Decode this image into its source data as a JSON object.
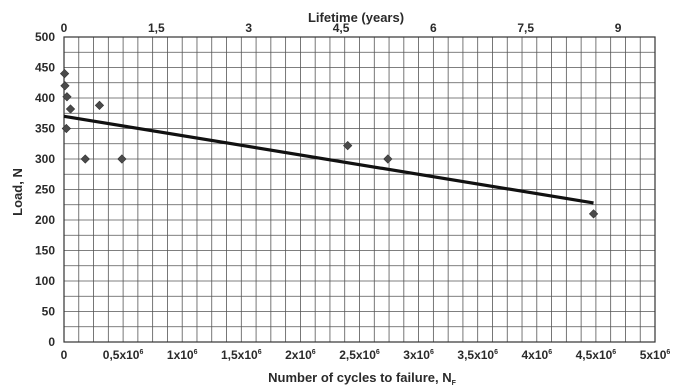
{
  "chart_data": {
    "type": "scatter",
    "title": "",
    "top_axis": {
      "label": "Lifetime  (years)",
      "ticks": [
        "0",
        "1,5",
        "3",
        "4,5",
        "6",
        "7,5",
        "9"
      ],
      "range": [
        0,
        9.6
      ]
    },
    "x_axis": {
      "label_main": "Number of cycles to failure, N",
      "label_sub": "F",
      "range": [
        0,
        5000000
      ],
      "ticks": [
        {
          "value": 0,
          "label": "0"
        },
        {
          "value": 500000,
          "mant": "0,5x10",
          "exp": "6"
        },
        {
          "value": 1000000,
          "mant": "1x10",
          "exp": "6"
        },
        {
          "value": 1500000,
          "mant": "1,5x10",
          "exp": "6"
        },
        {
          "value": 2000000,
          "mant": "2x10",
          "exp": "6"
        },
        {
          "value": 2500000,
          "mant": "2,5x10",
          "exp": "6"
        },
        {
          "value": 3000000,
          "mant": "3x10",
          "exp": "6"
        },
        {
          "value": 3500000,
          "mant": "3,5x10",
          "exp": "6"
        },
        {
          "value": 4000000,
          "mant": "4x10",
          "exp": "6"
        },
        {
          "value": 4500000,
          "mant": "4,5x10",
          "exp": "6"
        },
        {
          "value": 5000000,
          "mant": "5x10",
          "exp": "6"
        }
      ]
    },
    "y_axis": {
      "label": "Load, N",
      "range": [
        0,
        500
      ],
      "ticks": [
        0,
        50,
        100,
        150,
        200,
        250,
        300,
        350,
        400,
        450,
        500
      ]
    },
    "grid": true,
    "points": [
      {
        "x": 5000,
        "y": 440
      },
      {
        "x": 8000,
        "y": 420
      },
      {
        "x": 25000,
        "y": 402
      },
      {
        "x": 55000,
        "y": 382
      },
      {
        "x": 20000,
        "y": 350
      },
      {
        "x": 180000,
        "y": 300
      },
      {
        "x": 300000,
        "y": 388
      },
      {
        "x": 490000,
        "y": 300
      },
      {
        "x": 2400000,
        "y": 322
      },
      {
        "x": 2740000,
        "y": 300
      },
      {
        "x": 4480000,
        "y": 210
      }
    ],
    "trend_line": {
      "from": {
        "x": 0,
        "y": 370
      },
      "to": {
        "x": 4480000,
        "y": 228
      }
    },
    "colors": {
      "background": "#ffffff",
      "grid": "#555555",
      "marker": "#4a4a4a",
      "trend": "#111111",
      "text": "#2a2a2a"
    }
  }
}
